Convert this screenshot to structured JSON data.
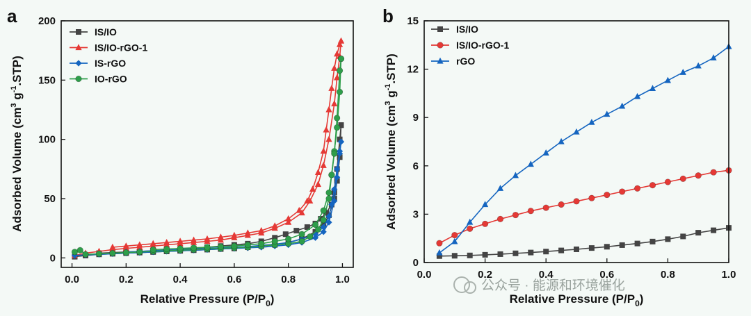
{
  "chart_data": [
    {
      "panel": "a",
      "type": "line",
      "xlabel": "Relative Pressure (P/P",
      "xlabel_sub": "0",
      "xlabel_close": ")",
      "ylabel_parts": [
        "Adsorbed Volume (cm",
        "3",
        " g",
        "-1",
        ".STP)"
      ],
      "xlim": [
        -0.04,
        1.04
      ],
      "ylim": [
        -8,
        200
      ],
      "xticks": [
        0.0,
        0.2,
        0.4,
        0.6,
        0.8,
        1.0
      ],
      "xtick_labels": [
        "0.0",
        "0.2",
        "0.4",
        "0.6",
        "0.8",
        "1.0"
      ],
      "yticks": [
        0,
        50,
        100,
        150,
        200
      ],
      "ytick_labels": [
        "0",
        "50",
        "100",
        "150",
        "200"
      ],
      "legend_position": "top-left",
      "series": [
        {
          "name": "IS/IO",
          "color": "#444444",
          "marker": "square",
          "adsorption": {
            "x": [
              0.01,
              0.05,
              0.1,
              0.15,
              0.2,
              0.25,
              0.3,
              0.35,
              0.4,
              0.45,
              0.5,
              0.55,
              0.6,
              0.65,
              0.7,
              0.75,
              0.8,
              0.85,
              0.9,
              0.93,
              0.95,
              0.97,
              0.98,
              0.99,
              0.995
            ],
            "y": [
              1,
              2,
              3,
              3.5,
              4,
              4.5,
              5,
              5.5,
              6,
              6.5,
              7,
              7.5,
              8,
              9,
              10,
              11,
              13,
              16,
              22,
              28,
              36,
              50,
              65,
              85,
              112
            ]
          },
          "desorption": {
            "x": [
              0.995,
              0.99,
              0.98,
              0.97,
              0.96,
              0.94,
              0.92,
              0.9,
              0.87,
              0.83,
              0.79,
              0.75,
              0.7,
              0.65,
              0.6,
              0.55,
              0.5,
              0.45,
              0.4,
              0.35,
              0.3,
              0.25,
              0.2,
              0.15,
              0.1
            ],
            "y": [
              112,
              100,
              75,
              55,
              45,
              38,
              33,
              29,
              26,
              23,
              20,
              17,
              14,
              12,
              11,
              10,
              9,
              8,
              7,
              6.5,
              6,
              5.5,
              5,
              4.5,
              4
            ]
          }
        },
        {
          "name": "IS/IO-rGO-1",
          "color": "#e53935",
          "marker": "triangle",
          "adsorption": {
            "x": [
              0.01,
              0.05,
              0.1,
              0.15,
              0.2,
              0.25,
              0.3,
              0.35,
              0.4,
              0.45,
              0.5,
              0.55,
              0.6,
              0.65,
              0.7,
              0.75,
              0.8,
              0.85,
              0.88,
              0.91,
              0.93,
              0.95,
              0.97,
              0.98,
              0.99,
              0.995
            ],
            "y": [
              2,
              4,
              5.5,
              7,
              8,
              9,
              10,
              11,
              12,
              13,
              14,
              15,
              17,
              19,
              21,
              25,
              30,
              38,
              48,
              62,
              78,
              100,
              130,
              152,
              170,
              183
            ]
          },
          "desorption": {
            "x": [
              0.995,
              0.99,
              0.98,
              0.97,
              0.96,
              0.95,
              0.94,
              0.93,
              0.91,
              0.89,
              0.87,
              0.84,
              0.8,
              0.75,
              0.7,
              0.65,
              0.6,
              0.55,
              0.5,
              0.45,
              0.4,
              0.35,
              0.3,
              0.25,
              0.2,
              0.15
            ],
            "y": [
              183,
              180,
              172,
              160,
              143,
              125,
              108,
              90,
              72,
              58,
              48,
              40,
              33,
              27,
              23,
              21,
              19,
              17.5,
              16,
              15,
              14,
              13,
              12,
              11,
              10,
              9
            ]
          }
        },
        {
          "name": "IS-rGO",
          "color": "#1565c0",
          "marker": "diamond",
          "adsorption": {
            "x": [
              0.01,
              0.05,
              0.1,
              0.15,
              0.2,
              0.25,
              0.3,
              0.35,
              0.4,
              0.45,
              0.5,
              0.55,
              0.6,
              0.65,
              0.7,
              0.75,
              0.8,
              0.85,
              0.9,
              0.93,
              0.95,
              0.97,
              0.98,
              0.99,
              0.995
            ],
            "y": [
              2,
              2.5,
              3,
              3.5,
              4,
              4.5,
              5,
              5.5,
              6,
              6.5,
              7,
              7.5,
              8,
              8.5,
              9,
              10,
              11,
              13,
              17,
              22,
              30,
              48,
              68,
              88,
              98
            ]
          },
          "desorption": {
            "x": [
              0.995,
              0.99,
              0.98,
              0.97,
              0.96,
              0.95,
              0.93,
              0.9,
              0.85,
              0.8,
              0.75,
              0.7,
              0.65,
              0.6,
              0.55,
              0.5,
              0.45,
              0.4,
              0.35,
              0.3,
              0.25,
              0.2
            ],
            "y": [
              98,
              90,
              75,
              58,
              45,
              35,
              26,
              20,
              16,
              13,
              11.5,
              10.5,
              9.5,
              9,
              8.5,
              8,
              7.5,
              7,
              6.5,
              6,
              5.5,
              5
            ]
          }
        },
        {
          "name": "IO-rGO",
          "color": "#2e9e4a",
          "marker": "circle",
          "adsorption": {
            "x": [
              0.01,
              0.03,
              0.05,
              0.1,
              0.15,
              0.2,
              0.25,
              0.3,
              0.35,
              0.4,
              0.45,
              0.5,
              0.55,
              0.6,
              0.65,
              0.7,
              0.75,
              0.8,
              0.85,
              0.88,
              0.91,
              0.93,
              0.95,
              0.96,
              0.97,
              0.98,
              0.99,
              0.995
            ],
            "y": [
              5,
              6.5,
              3,
              3.5,
              4,
              4.5,
              5,
              5.5,
              6,
              6.5,
              7,
              7.5,
              8,
              8.5,
              9,
              10,
              11,
              12,
              14,
              18,
              24,
              32,
              50,
              70,
              90,
              110,
              140,
              168
            ]
          },
          "desorption": {
            "x": [
              0.995,
              0.99,
              0.98,
              0.97,
              0.96,
              0.95,
              0.93,
              0.9,
              0.85,
              0.8,
              0.75,
              0.7,
              0.65,
              0.6,
              0.55,
              0.5,
              0.45,
              0.4,
              0.35,
              0.3
            ],
            "y": [
              168,
              158,
              118,
              88,
              70,
              55,
              40,
              28,
              20,
              16,
              14,
              12,
              11,
              10,
              9.5,
              9,
              8.5,
              8,
              7.5,
              7
            ]
          }
        }
      ]
    },
    {
      "panel": "b",
      "type": "line",
      "xlabel": "Relative Pressure (P/P",
      "xlabel_sub": "0",
      "xlabel_close": ")",
      "ylabel_parts": [
        "Adsorbed Volume (cm",
        "3",
        " g",
        "-1",
        ".STP)"
      ],
      "xlim": [
        0.0,
        1.0
      ],
      "ylim": [
        0,
        15
      ],
      "xticks": [
        0.0,
        0.2,
        0.4,
        0.6,
        0.8,
        1.0
      ],
      "xtick_labels": [
        "0.0",
        "0.2",
        "0.4",
        "0.6",
        "0.8",
        "1.0"
      ],
      "yticks": [
        0,
        3,
        6,
        9,
        12,
        15
      ],
      "ytick_labels": [
        "0",
        "3",
        "6",
        "9",
        "12",
        "15"
      ],
      "legend_position": "top-left",
      "series": [
        {
          "name": "IS/IO",
          "color": "#444444",
          "marker": "square",
          "x": [
            0.05,
            0.1,
            0.15,
            0.2,
            0.25,
            0.3,
            0.35,
            0.4,
            0.45,
            0.5,
            0.55,
            0.6,
            0.65,
            0.7,
            0.75,
            0.8,
            0.85,
            0.9,
            0.95,
            1.0
          ],
          "y": [
            0.4,
            0.42,
            0.44,
            0.48,
            0.52,
            0.57,
            0.62,
            0.68,
            0.75,
            0.82,
            0.9,
            0.98,
            1.08,
            1.18,
            1.3,
            1.45,
            1.62,
            1.85,
            2.0,
            2.15
          ]
        },
        {
          "name": "IS/IO-rGO-1",
          "color": "#e53935",
          "marker": "circle",
          "x": [
            0.05,
            0.1,
            0.15,
            0.2,
            0.25,
            0.3,
            0.35,
            0.4,
            0.45,
            0.5,
            0.55,
            0.6,
            0.65,
            0.7,
            0.75,
            0.8,
            0.85,
            0.9,
            0.95,
            1.0
          ],
          "y": [
            1.2,
            1.7,
            2.1,
            2.4,
            2.7,
            2.95,
            3.2,
            3.4,
            3.6,
            3.8,
            4.0,
            4.2,
            4.4,
            4.6,
            4.8,
            5.0,
            5.2,
            5.4,
            5.6,
            5.72
          ]
        },
        {
          "name": "rGO",
          "color": "#1565c0",
          "marker": "triangle",
          "x": [
            0.05,
            0.1,
            0.15,
            0.2,
            0.25,
            0.3,
            0.35,
            0.4,
            0.45,
            0.5,
            0.55,
            0.6,
            0.65,
            0.7,
            0.75,
            0.8,
            0.85,
            0.9,
            0.95,
            1.0
          ],
          "y": [
            0.6,
            1.3,
            2.5,
            3.6,
            4.6,
            5.4,
            6.1,
            6.8,
            7.5,
            8.1,
            8.7,
            9.2,
            9.7,
            10.3,
            10.8,
            11.3,
            11.8,
            12.2,
            12.7,
            13.4
          ]
        }
      ]
    }
  ],
  "watermark": "公众号 · 能源和环境催化"
}
